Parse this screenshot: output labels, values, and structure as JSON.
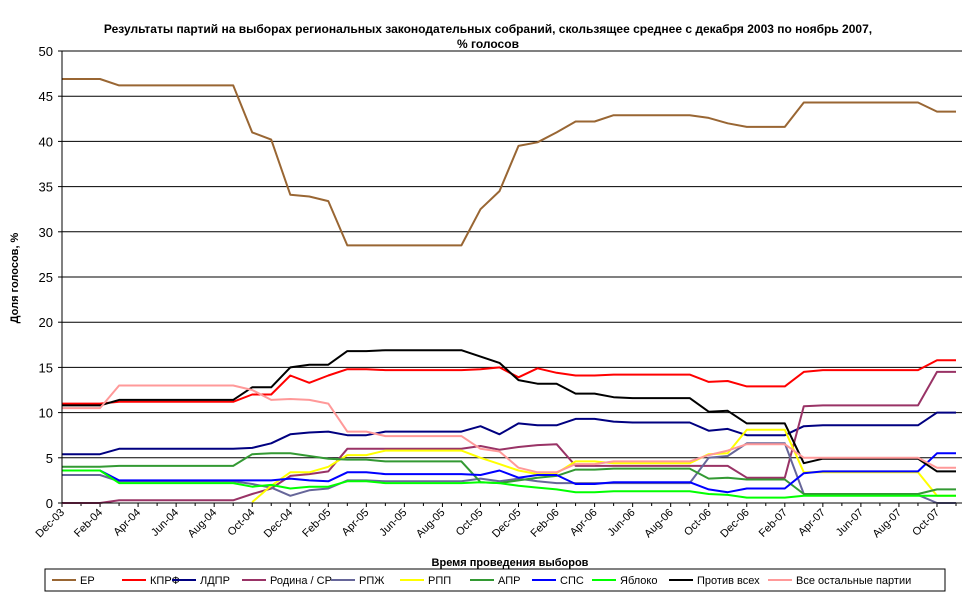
{
  "chart_data": {
    "type": "line",
    "title": "Результаты партий на выборах региональных законодательных собраний, скользящее среднее с декабря 2003 по ноябрь 2007,",
    "subtitle": "% голосов",
    "xlabel": "Время проведения выборов",
    "ylabel": "Доля голосов, %",
    "ylim": [
      0,
      50
    ],
    "yticks": [
      0,
      5,
      10,
      15,
      20,
      25,
      30,
      35,
      40,
      45,
      50
    ],
    "grid": "horizontal",
    "legend_position": "bottom",
    "x": [
      "2003-12",
      "2004-01",
      "2004-02",
      "2004-03",
      "2004-04",
      "2004-05",
      "2004-06",
      "2004-07",
      "2004-08",
      "2004-09",
      "2004-10",
      "2004-11",
      "2004-12",
      "2005-01",
      "2005-02",
      "2005-03",
      "2005-04",
      "2005-05",
      "2005-06",
      "2005-07",
      "2005-08",
      "2005-09",
      "2005-10",
      "2005-11",
      "2005-12",
      "2006-01",
      "2006-02",
      "2006-03",
      "2006-04",
      "2006-05",
      "2006-06",
      "2006-07",
      "2006-08",
      "2006-09",
      "2006-10",
      "2006-11",
      "2006-12",
      "2007-01",
      "2007-02",
      "2007-03",
      "2007-04",
      "2007-05",
      "2007-06",
      "2007-07",
      "2007-08",
      "2007-09",
      "2007-10",
      "2007-11"
    ],
    "x_tick_labels": [
      "Dec-03",
      "Feb-04",
      "Apr-04",
      "Jun-04",
      "Aug-04",
      "Oct-04",
      "Dec-04",
      "Feb-05",
      "Apr-05",
      "Jun-05",
      "Aug-05",
      "Oct-05",
      "Dec-05",
      "Feb-06",
      "Apr-06",
      "Jun-06",
      "Aug-06",
      "Oct-06",
      "Dec-06",
      "Feb-07",
      "Apr-07",
      "Jun-07",
      "Aug-07",
      "Oct-07"
    ],
    "series": [
      {
        "name": "ЕР",
        "color": "#996633",
        "values": [
          46.9,
          46.9,
          46.9,
          46.2,
          46.2,
          46.2,
          46.2,
          46.2,
          46.2,
          46.2,
          41.0,
          40.2,
          34.1,
          33.9,
          33.4,
          28.5,
          28.5,
          28.5,
          28.5,
          28.5,
          28.5,
          28.5,
          32.5,
          34.5,
          39.5,
          39.9,
          41.0,
          42.2,
          42.2,
          42.9,
          42.9,
          42.9,
          42.9,
          42.9,
          42.6,
          42.0,
          41.6,
          41.6,
          41.6,
          44.3,
          44.3,
          44.3,
          44.3,
          44.3,
          44.3,
          44.3,
          43.3,
          43.3
        ]
      },
      {
        "name": "КПРФ",
        "color": "#ff0000",
        "values": [
          11.0,
          11.0,
          11.0,
          11.2,
          11.2,
          11.2,
          11.2,
          11.2,
          11.2,
          11.2,
          12.0,
          12.0,
          14.1,
          13.3,
          14.1,
          14.8,
          14.8,
          14.7,
          14.7,
          14.7,
          14.7,
          14.7,
          14.8,
          15.0,
          13.9,
          14.9,
          14.4,
          14.1,
          14.1,
          14.2,
          14.2,
          14.2,
          14.2,
          14.2,
          13.4,
          13.5,
          12.9,
          12.9,
          12.9,
          14.5,
          14.7,
          14.7,
          14.7,
          14.7,
          14.7,
          14.7,
          15.8,
          15.8
        ]
      },
      {
        "name": "ЛДПР",
        "color": "#000080",
        "values": [
          5.4,
          5.4,
          5.4,
          6.0,
          6.0,
          6.0,
          6.0,
          6.0,
          6.0,
          6.0,
          6.1,
          6.6,
          7.6,
          7.8,
          7.9,
          7.5,
          7.5,
          7.9,
          7.9,
          7.9,
          7.9,
          7.9,
          8.5,
          7.6,
          8.8,
          8.6,
          8.6,
          9.3,
          9.3,
          9.0,
          8.9,
          8.9,
          8.9,
          8.9,
          8.0,
          8.2,
          7.5,
          7.5,
          7.5,
          8.5,
          8.6,
          8.6,
          8.6,
          8.6,
          8.6,
          8.6,
          10.0,
          10.0
        ]
      },
      {
        "name": "Родина / СР",
        "color": "#993366",
        "values": [
          0.0,
          0.0,
          0.0,
          0.3,
          0.3,
          0.3,
          0.3,
          0.3,
          0.3,
          0.3,
          1.0,
          1.6,
          3.0,
          3.2,
          3.5,
          6.0,
          6.0,
          6.0,
          6.0,
          6.0,
          6.0,
          6.0,
          6.3,
          5.9,
          6.2,
          6.4,
          6.5,
          4.1,
          4.1,
          4.1,
          4.1,
          4.1,
          4.1,
          4.1,
          4.1,
          4.1,
          2.8,
          2.8,
          2.8,
          10.7,
          10.8,
          10.8,
          10.8,
          10.8,
          10.8,
          10.8,
          14.5,
          14.5
        ]
      },
      {
        "name": "РПЖ",
        "color": "#666699",
        "values": [
          3.1,
          3.1,
          3.1,
          2.4,
          2.4,
          2.4,
          2.4,
          2.4,
          2.4,
          2.4,
          2.1,
          1.7,
          0.8,
          1.4,
          1.6,
          2.5,
          2.5,
          2.4,
          2.4,
          2.4,
          2.4,
          2.4,
          2.7,
          2.4,
          2.7,
          2.4,
          2.2,
          2.2,
          2.2,
          2.2,
          2.2,
          2.2,
          2.2,
          2.2,
          5.0,
          5.2,
          6.6,
          6.6,
          6.6,
          1.0,
          0.9,
          0.9,
          0.9,
          0.9,
          0.9,
          0.9,
          0.0,
          0.0
        ]
      },
      {
        "name": "РПП",
        "color": "#ffff00",
        "values": [
          null,
          null,
          null,
          null,
          null,
          null,
          null,
          null,
          null,
          null,
          0.1,
          1.9,
          3.4,
          3.4,
          4.0,
          5.3,
          5.3,
          5.8,
          5.8,
          5.8,
          5.8,
          5.8,
          5.0,
          4.3,
          3.6,
          3.2,
          3.3,
          4.6,
          4.6,
          4.4,
          4.4,
          4.4,
          4.4,
          4.4,
          5.4,
          5.5,
          8.1,
          8.1,
          8.1,
          3.4,
          3.4,
          3.4,
          3.4,
          3.4,
          3.4,
          3.4,
          0.8,
          0.8
        ]
      },
      {
        "name": "АПР",
        "color": "#339933",
        "values": [
          4.0,
          4.0,
          4.0,
          4.1,
          4.1,
          4.1,
          4.1,
          4.1,
          4.1,
          4.1,
          5.4,
          5.5,
          5.5,
          5.2,
          4.9,
          4.8,
          4.8,
          4.6,
          4.6,
          4.6,
          4.6,
          4.6,
          2.3,
          2.2,
          2.5,
          2.8,
          3.0,
          3.7,
          3.7,
          3.8,
          3.8,
          3.8,
          3.8,
          3.8,
          2.7,
          2.8,
          2.6,
          2.6,
          2.6,
          1.0,
          1.0,
          1.0,
          1.0,
          1.0,
          1.0,
          1.0,
          1.5,
          1.5
        ]
      },
      {
        "name": "СПС",
        "color": "#0000ff",
        "values": [
          3.6,
          3.6,
          3.6,
          2.5,
          2.5,
          2.5,
          2.5,
          2.5,
          2.5,
          2.5,
          2.5,
          2.5,
          2.7,
          2.5,
          2.4,
          3.4,
          3.4,
          3.2,
          3.2,
          3.2,
          3.2,
          3.2,
          3.1,
          3.6,
          2.8,
          3.1,
          3.1,
          2.1,
          2.1,
          2.3,
          2.3,
          2.3,
          2.3,
          2.3,
          1.5,
          1.2,
          1.6,
          1.6,
          1.6,
          3.3,
          3.5,
          3.5,
          3.5,
          3.5,
          3.5,
          3.5,
          5.5,
          5.5
        ]
      },
      {
        "name": "Яблоко",
        "color": "#00ff00",
        "values": [
          3.6,
          3.6,
          3.6,
          2.2,
          2.2,
          2.2,
          2.2,
          2.2,
          2.2,
          2.2,
          1.8,
          2.0,
          1.6,
          1.8,
          1.8,
          2.4,
          2.4,
          2.2,
          2.2,
          2.2,
          2.2,
          2.2,
          2.3,
          2.2,
          1.9,
          1.7,
          1.5,
          1.2,
          1.2,
          1.3,
          1.3,
          1.3,
          1.3,
          1.3,
          1.0,
          0.9,
          0.6,
          0.6,
          0.6,
          0.8,
          0.8,
          0.8,
          0.8,
          0.8,
          0.8,
          0.8,
          0.8,
          0.8
        ]
      },
      {
        "name": "Против всех",
        "color": "#000000",
        "values": [
          10.8,
          10.8,
          10.8,
          11.4,
          11.4,
          11.4,
          11.4,
          11.4,
          11.4,
          11.4,
          12.8,
          12.8,
          15.0,
          15.3,
          15.3,
          16.8,
          16.8,
          16.9,
          16.9,
          16.9,
          16.9,
          16.9,
          16.2,
          15.5,
          13.6,
          13.2,
          13.2,
          12.1,
          12.1,
          11.7,
          11.6,
          11.6,
          11.6,
          11.6,
          10.1,
          10.2,
          8.8,
          8.8,
          8.8,
          4.4,
          4.9,
          4.9,
          4.9,
          4.9,
          4.9,
          4.9,
          3.5,
          3.5
        ]
      },
      {
        "name": "Все остальные партии",
        "color": "#ff9999",
        "values": [
          10.5,
          10.5,
          10.5,
          13.0,
          13.0,
          13.0,
          13.0,
          13.0,
          13.0,
          13.0,
          12.5,
          11.4,
          11.5,
          11.4,
          11.0,
          7.9,
          7.9,
          7.4,
          7.4,
          7.4,
          7.4,
          7.4,
          6.0,
          5.7,
          3.9,
          3.4,
          3.4,
          4.3,
          4.3,
          4.6,
          4.6,
          4.6,
          4.6,
          4.6,
          5.3,
          5.8,
          6.5,
          6.5,
          6.5,
          5.0,
          5.0,
          5.0,
          5.0,
          5.0,
          5.0,
          5.0,
          3.9,
          3.9
        ]
      }
    ]
  }
}
